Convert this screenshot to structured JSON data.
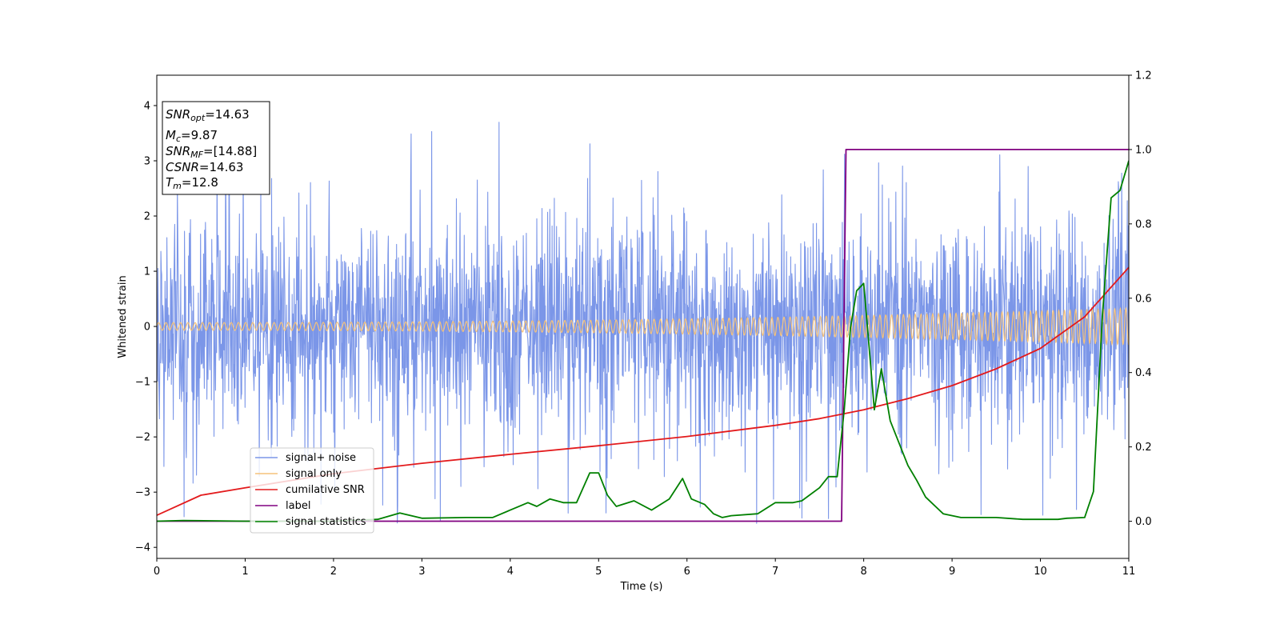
{
  "chart_data": {
    "type": "line",
    "xlabel": "Time (s)",
    "ylabel": "Whitened strain",
    "xlim": [
      0,
      11
    ],
    "ylim": [
      -4.2,
      4.55
    ],
    "y2lim": [
      -0.1,
      1.2
    ],
    "x_ticks": [
      "0",
      "1",
      "2",
      "3",
      "4",
      "5",
      "6",
      "7",
      "8",
      "9",
      "10",
      "11"
    ],
    "y_ticks": [
      "4",
      "3",
      "2",
      "1",
      "0",
      "−1",
      "−2",
      "−3",
      "−4"
    ],
    "y2_ticks": [
      "1.2",
      "1.0",
      "0.8",
      "0.6",
      "0.4",
      "0.2",
      "0.0"
    ],
    "annotation": {
      "snr_opt": {
        "sym": "SNR",
        "sub": "opt",
        "value": "=14.63"
      },
      "mc": {
        "sym": "M",
        "sub": "c",
        "value": "=9.87"
      },
      "snr_mf": {
        "sym": "SNR",
        "sub": "MF",
        "value": "=[14.88]"
      },
      "csnr": {
        "sym": "CSNR",
        "sub": "",
        "value": "=14.63"
      },
      "tm": {
        "sym": "T",
        "sub": "m",
        "value": "=12.8"
      }
    },
    "series": [
      {
        "name": "signal+ noise",
        "color": "#7b96e8",
        "axis": "left",
        "kind": "noise",
        "envelope_std": 1.0,
        "peak_range": [
          -3.8,
          3.7
        ]
      },
      {
        "name": "signal only",
        "color": "#f5c27a",
        "axis": "left",
        "kind": "chirp",
        "amplitude_start": 0.07,
        "amplitude_end": 0.33
      },
      {
        "name": "cumilative SNR",
        "color": "#e31a1c",
        "axis": "right",
        "x": [
          0,
          0.5,
          1,
          2,
          3,
          4,
          5,
          6,
          7,
          7.5,
          8,
          8.5,
          9,
          9.5,
          10,
          10.5,
          11
        ],
        "y": [
          0.016,
          0.07,
          0.09,
          0.128,
          0.156,
          0.18,
          0.203,
          0.228,
          0.258,
          0.276,
          0.3,
          0.33,
          0.365,
          0.41,
          0.465,
          0.55,
          0.683
        ]
      },
      {
        "name": "label",
        "color": "#800080",
        "axis": "right",
        "x": [
          0,
          7.75,
          7.8,
          11
        ],
        "y": [
          0.0,
          0.0,
          1.0,
          1.0
        ]
      },
      {
        "name": "signal statistics",
        "color": "#008000",
        "axis": "right",
        "x": [
          0,
          0.3,
          1,
          1.5,
          2,
          2.5,
          2.75,
          3,
          3.5,
          3.8,
          4,
          4.2,
          4.3,
          4.45,
          4.6,
          4.75,
          4.9,
          5.0,
          5.1,
          5.2,
          5.4,
          5.6,
          5.8,
          5.95,
          6.05,
          6.2,
          6.3,
          6.4,
          6.5,
          6.8,
          7.0,
          7.2,
          7.3,
          7.5,
          7.6,
          7.7,
          7.78,
          7.85,
          7.92,
          8.0,
          8.05,
          8.12,
          8.2,
          8.3,
          8.5,
          8.6,
          8.7,
          8.9,
          9.1,
          9.5,
          9.8,
          10.0,
          10.2,
          10.3,
          10.5,
          10.6,
          10.7,
          10.8,
          10.9,
          11.0
        ],
        "y": [
          0.0,
          0.002,
          0.0,
          0.0,
          0.0,
          0.005,
          0.022,
          0.008,
          0.01,
          0.01,
          0.03,
          0.05,
          0.04,
          0.06,
          0.05,
          0.05,
          0.13,
          0.13,
          0.07,
          0.04,
          0.055,
          0.03,
          0.06,
          0.115,
          0.06,
          0.045,
          0.02,
          0.01,
          0.015,
          0.02,
          0.05,
          0.05,
          0.055,
          0.09,
          0.12,
          0.12,
          0.3,
          0.52,
          0.62,
          0.64,
          0.5,
          0.3,
          0.41,
          0.27,
          0.15,
          0.11,
          0.065,
          0.02,
          0.01,
          0.01,
          0.005,
          0.005,
          0.005,
          0.008,
          0.01,
          0.08,
          0.55,
          0.87,
          0.89,
          0.97
        ]
      }
    ]
  }
}
